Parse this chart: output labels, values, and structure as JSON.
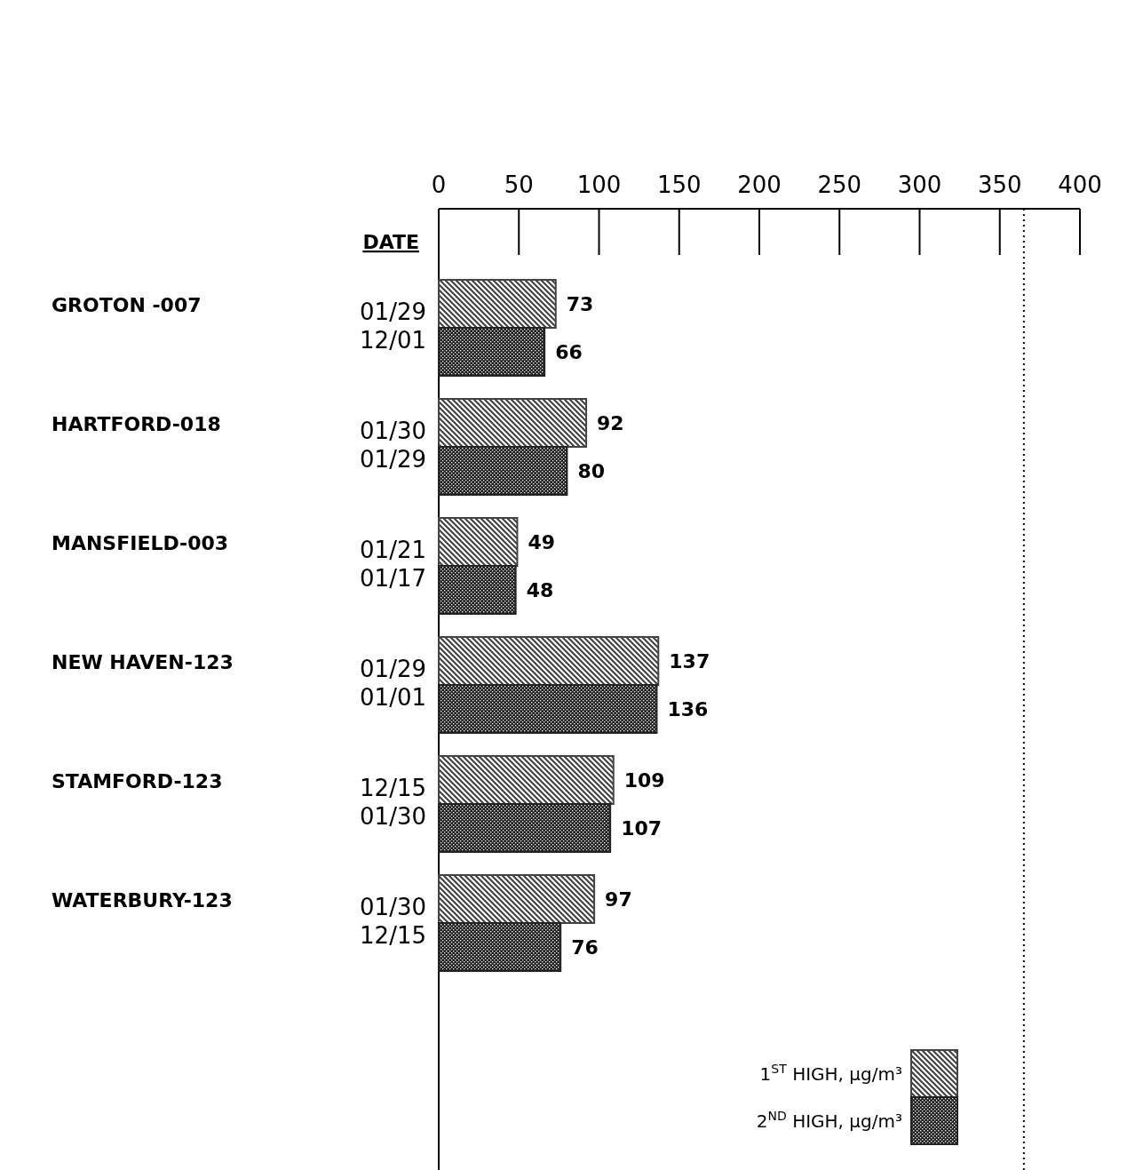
{
  "chart_data": {
    "type": "bar",
    "orientation": "horizontal",
    "categories": [
      "GROTON -007",
      "HARTFORD-018",
      "MANSFIELD-003",
      "NEW HAVEN-123",
      "STAMFORD-123",
      "WATERBURY-123"
    ],
    "series": [
      {
        "name": "1$^{ST}$ HIGH, μg/m³",
        "color": "#444444",
        "values": [
          73,
          92,
          49,
          137,
          109,
          97
        ]
      },
      {
        "name": "2$^{ND}$ HIGH, μg/m³",
        "color": "#222222",
        "values": [
          66,
          80,
          48,
          136,
          107,
          76
        ]
      }
    ],
    "x2lim": [
      0,
      400
    ],
    "x2ticks": [
      0,
      50,
      100,
      150,
      200,
      250,
      300,
      350,
      400
    ],
    "data_labels": true,
    "legend": "bottom right",
    "grid": false,
    "ref_lines": [
      {
        "axis": "x",
        "value": 365,
        "line_style": "dotted",
        "color": "#000000"
      }
    ],
    "annotations": [
      "DATE",
      "01/29",
      "12/01",
      "01/30",
      "01/29",
      "01/21",
      "01/17",
      "01/29",
      "01/01",
      "12/15",
      "01/30",
      "01/30",
      "12/15"
    ]
  }
}
